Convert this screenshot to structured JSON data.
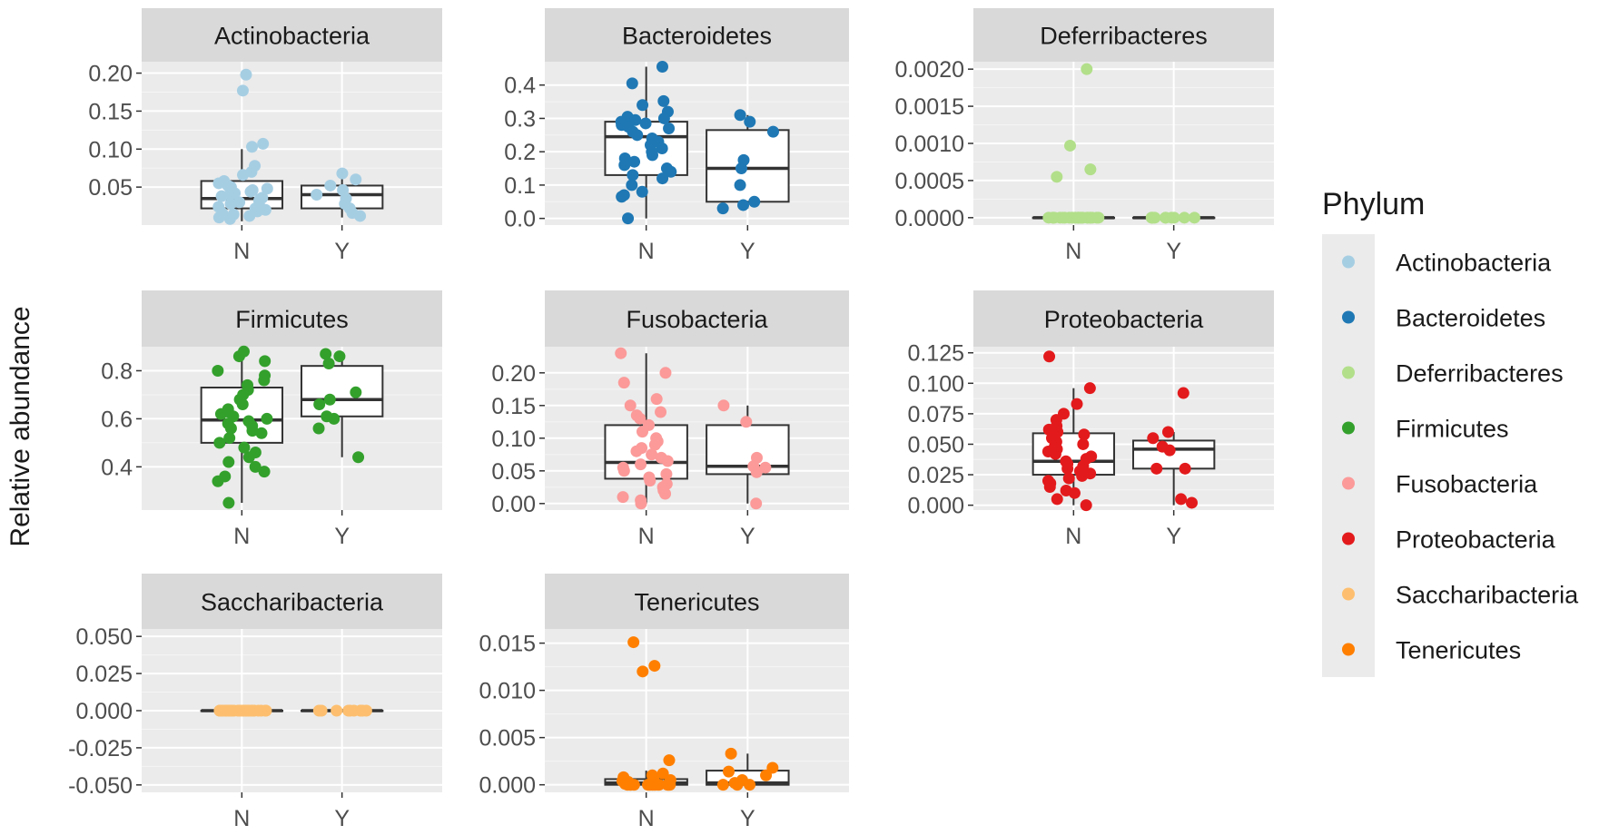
{
  "y_axis_label": "Relative abundance",
  "legend": {
    "title": "Phylum",
    "items": [
      {
        "label": "Actinobacteria",
        "color": "#a6cee3"
      },
      {
        "label": "Bacteroidetes",
        "color": "#1f78b4"
      },
      {
        "label": "Deferribacteres",
        "color": "#b2df8a"
      },
      {
        "label": "Firmicutes",
        "color": "#33a02c"
      },
      {
        "label": "Fusobacteria",
        "color": "#fb9a99"
      },
      {
        "label": "Proteobacteria",
        "color": "#e31a1c"
      },
      {
        "label": "Saccharibacteria",
        "color": "#fdbf6f"
      },
      {
        "label": "Tenericutes",
        "color": "#ff7f00"
      }
    ]
  },
  "chart_data": [
    {
      "type": "box",
      "title": "Actinobacteria",
      "color": "#a6cee3",
      "categories": [
        "N",
        "Y"
      ],
      "ylim": [
        0.0,
        0.215
      ],
      "yticks": [
        0.05,
        0.1,
        0.15,
        0.2
      ],
      "ytick_labels": [
        "0.05",
        "0.10",
        "0.15",
        "0.20"
      ],
      "boxes": [
        {
          "category": "N",
          "lower_whisker": 0.005,
          "q1": 0.022,
          "median": 0.035,
          "q3": 0.058,
          "upper_whisker": 0.1
        },
        {
          "category": "Y",
          "lower_whisker": 0.01,
          "q1": 0.022,
          "median": 0.04,
          "q3": 0.052,
          "upper_whisker": 0.065
        }
      ],
      "points": [
        {
          "category": "N",
          "values": [
            0.198,
            0.177,
            0.107,
            0.103,
            0.078,
            0.07,
            0.066,
            0.058,
            0.055,
            0.052,
            0.05,
            0.048,
            0.046,
            0.044,
            0.042,
            0.04,
            0.038,
            0.036,
            0.034,
            0.032,
            0.03,
            0.028,
            0.026,
            0.024,
            0.022,
            0.02,
            0.018,
            0.016,
            0.014,
            0.012,
            0.01,
            0.008
          ]
        },
        {
          "category": "Y",
          "values": [
            0.068,
            0.06,
            0.052,
            0.046,
            0.04,
            0.035,
            0.028,
            0.022,
            0.016,
            0.012
          ]
        }
      ]
    },
    {
      "type": "box",
      "title": "Bacteroidetes",
      "color": "#1f78b4",
      "categories": [
        "N",
        "Y"
      ],
      "ylim": [
        -0.02,
        0.47
      ],
      "yticks": [
        0.0,
        0.1,
        0.2,
        0.3,
        0.4
      ],
      "ytick_labels": [
        "0.0",
        "0.1",
        "0.2",
        "0.3",
        "0.4"
      ],
      "boxes": [
        {
          "category": "N",
          "lower_whisker": 0.0,
          "q1": 0.13,
          "median": 0.245,
          "q3": 0.29,
          "upper_whisker": 0.455
        },
        {
          "category": "Y",
          "lower_whisker": 0.03,
          "q1": 0.05,
          "median": 0.15,
          "q3": 0.265,
          "upper_whisker": 0.31
        }
      ],
      "points": [
        {
          "category": "N",
          "values": [
            0.455,
            0.405,
            0.352,
            0.34,
            0.32,
            0.305,
            0.3,
            0.295,
            0.29,
            0.285,
            0.28,
            0.275,
            0.27,
            0.26,
            0.25,
            0.24,
            0.23,
            0.22,
            0.21,
            0.2,
            0.19,
            0.18,
            0.17,
            0.16,
            0.15,
            0.14,
            0.13,
            0.12,
            0.1,
            0.08,
            0.07,
            0.065,
            0.0
          ]
        },
        {
          "category": "Y",
          "values": [
            0.31,
            0.29,
            0.26,
            0.175,
            0.15,
            0.1,
            0.05,
            0.04,
            0.03
          ]
        }
      ]
    },
    {
      "type": "box",
      "title": "Deferribacteres",
      "color": "#b2df8a",
      "categories": [
        "N",
        "Y"
      ],
      "ylim": [
        -0.0001,
        0.0021
      ],
      "yticks": [
        0.0,
        0.0005,
        0.001,
        0.0015,
        0.002
      ],
      "ytick_labels": [
        "0.0000",
        "0.0005",
        "0.0010",
        "0.0015",
        "0.0020"
      ],
      "boxes": [
        {
          "category": "N",
          "lower_whisker": 0.0,
          "q1": 0.0,
          "median": 0.0,
          "q3": 0.0,
          "upper_whisker": 0.0
        },
        {
          "category": "Y",
          "lower_whisker": 0.0,
          "q1": 0.0,
          "median": 0.0,
          "q3": 0.0,
          "upper_whisker": 0.0
        }
      ],
      "points": [
        {
          "category": "N",
          "values": [
            0.002,
            0.00097,
            0.00065,
            0.00055,
            0.0,
            0.0,
            0.0,
            0.0,
            0.0,
            0.0,
            0.0,
            0.0,
            0.0,
            0.0,
            0.0,
            0.0,
            0.0,
            0.0,
            0.0,
            0.0,
            0.0,
            0.0,
            0.0,
            0.0,
            0.0,
            0.0,
            0.0,
            0.0,
            0.0,
            0.0
          ]
        },
        {
          "category": "Y",
          "values": [
            0.0,
            0.0,
            0.0,
            0.0,
            0.0,
            0.0,
            0.0,
            0.0,
            0.0,
            0.0
          ]
        }
      ]
    },
    {
      "type": "box",
      "title": "Firmicutes",
      "color": "#33a02c",
      "categories": [
        "N",
        "Y"
      ],
      "ylim": [
        0.22,
        0.9
      ],
      "yticks": [
        0.4,
        0.6,
        0.8
      ],
      "ytick_labels": [
        "0.4",
        "0.6",
        "0.8"
      ],
      "boxes": [
        {
          "category": "N",
          "lower_whisker": 0.25,
          "q1": 0.5,
          "median": 0.595,
          "q3": 0.73,
          "upper_whisker": 0.88
        },
        {
          "category": "Y",
          "lower_whisker": 0.44,
          "q1": 0.61,
          "median": 0.68,
          "q3": 0.82,
          "upper_whisker": 0.87
        }
      ],
      "points": [
        {
          "category": "N",
          "values": [
            0.88,
            0.86,
            0.84,
            0.8,
            0.78,
            0.76,
            0.74,
            0.72,
            0.7,
            0.68,
            0.66,
            0.64,
            0.63,
            0.62,
            0.61,
            0.6,
            0.59,
            0.58,
            0.57,
            0.56,
            0.55,
            0.54,
            0.52,
            0.5,
            0.48,
            0.46,
            0.44,
            0.42,
            0.4,
            0.38,
            0.36,
            0.34,
            0.25
          ]
        },
        {
          "category": "Y",
          "values": [
            0.87,
            0.86,
            0.83,
            0.71,
            0.68,
            0.66,
            0.61,
            0.6,
            0.56,
            0.44
          ]
        }
      ]
    },
    {
      "type": "box",
      "title": "Fusobacteria",
      "color": "#fb9a99",
      "categories": [
        "N",
        "Y"
      ],
      "ylim": [
        -0.01,
        0.24
      ],
      "yticks": [
        0.0,
        0.05,
        0.1,
        0.15,
        0.2
      ],
      "ytick_labels": [
        "0.00",
        "0.05",
        "0.10",
        "0.15",
        "0.20"
      ],
      "boxes": [
        {
          "category": "N",
          "lower_whisker": 0.0,
          "q1": 0.038,
          "median": 0.063,
          "q3": 0.12,
          "upper_whisker": 0.23
        },
        {
          "category": "Y",
          "lower_whisker": 0.0,
          "q1": 0.045,
          "median": 0.057,
          "q3": 0.12,
          "upper_whisker": 0.15
        }
      ],
      "points": [
        {
          "category": "N",
          "values": [
            0.23,
            0.2,
            0.185,
            0.16,
            0.15,
            0.14,
            0.135,
            0.13,
            0.12,
            0.11,
            0.1,
            0.095,
            0.09,
            0.085,
            0.08,
            0.075,
            0.07,
            0.065,
            0.06,
            0.055,
            0.05,
            0.045,
            0.04,
            0.035,
            0.03,
            0.025,
            0.02,
            0.015,
            0.01,
            0.005,
            0.0
          ]
        },
        {
          "category": "Y",
          "values": [
            0.15,
            0.125,
            0.07,
            0.057,
            0.055,
            0.048,
            0.0
          ]
        }
      ]
    },
    {
      "type": "box",
      "title": "Proteobacteria",
      "color": "#e31a1c",
      "categories": [
        "N",
        "Y"
      ],
      "ylim": [
        -0.004,
        0.13
      ],
      "yticks": [
        0.0,
        0.025,
        0.05,
        0.075,
        0.1,
        0.125
      ],
      "ytick_labels": [
        "0.000",
        "0.025",
        "0.050",
        "0.075",
        "0.100",
        "0.125"
      ],
      "boxes": [
        {
          "category": "N",
          "lower_whisker": 0.0,
          "q1": 0.025,
          "median": 0.036,
          "q3": 0.059,
          "upper_whisker": 0.096
        },
        {
          "category": "Y",
          "lower_whisker": 0.0,
          "q1": 0.03,
          "median": 0.046,
          "q3": 0.053,
          "upper_whisker": 0.06
        }
      ],
      "points": [
        {
          "category": "N",
          "values": [
            0.122,
            0.096,
            0.083,
            0.075,
            0.07,
            0.065,
            0.062,
            0.06,
            0.058,
            0.055,
            0.052,
            0.05,
            0.048,
            0.046,
            0.044,
            0.042,
            0.04,
            0.038,
            0.036,
            0.034,
            0.032,
            0.03,
            0.028,
            0.026,
            0.024,
            0.022,
            0.02,
            0.018,
            0.015,
            0.012,
            0.01,
            0.005,
            0.0
          ]
        },
        {
          "category": "Y",
          "values": [
            0.092,
            0.06,
            0.055,
            0.048,
            0.045,
            0.03,
            0.03,
            0.005,
            0.002
          ]
        }
      ]
    },
    {
      "type": "box",
      "title": "Saccharibacteria",
      "color": "#fdbf6f",
      "categories": [
        "N",
        "Y"
      ],
      "ylim": [
        -0.055,
        0.055
      ],
      "yticks": [
        -0.05,
        -0.025,
        0.0,
        0.025,
        0.05
      ],
      "ytick_labels": [
        "-0.050",
        "-0.025",
        "0.000",
        "0.025",
        "0.050"
      ],
      "boxes": [
        {
          "category": "N",
          "lower_whisker": 0.0,
          "q1": 0.0,
          "median": 0.0,
          "q3": 0.0,
          "upper_whisker": 0.0
        },
        {
          "category": "Y",
          "lower_whisker": 0.0,
          "q1": 0.0,
          "median": 0.0,
          "q3": 0.0,
          "upper_whisker": 0.0
        }
      ],
      "points": [
        {
          "category": "N",
          "values": [
            0.0,
            0.0,
            0.0,
            0.0,
            0.0,
            0.0,
            0.0,
            0.0,
            0.0,
            0.0,
            0.0,
            0.0,
            0.0,
            0.0,
            0.0,
            0.0,
            0.0,
            0.0,
            0.0,
            0.0,
            0.0,
            0.0,
            0.0,
            0.0,
            0.0,
            0.0,
            0.0,
            0.0,
            0.0,
            0.0
          ]
        },
        {
          "category": "Y",
          "values": [
            0.0,
            0.0,
            0.0,
            0.0,
            0.0,
            0.0,
            0.0,
            0.0,
            0.0,
            0.0
          ]
        }
      ]
    },
    {
      "type": "box",
      "title": "Tenericutes",
      "color": "#ff7f00",
      "categories": [
        "N",
        "Y"
      ],
      "ylim": [
        -0.0008,
        0.0165
      ],
      "yticks": [
        0.0,
        0.005,
        0.01,
        0.015
      ],
      "ytick_labels": [
        "0.000",
        "0.005",
        "0.010",
        "0.015"
      ],
      "boxes": [
        {
          "category": "N",
          "lower_whisker": 0.0,
          "q1": 0.0,
          "median": 0.0002,
          "q3": 0.0006,
          "upper_whisker": 0.0015
        },
        {
          "category": "Y",
          "lower_whisker": 0.0,
          "q1": 0.0,
          "median": 0.0002,
          "q3": 0.0015,
          "upper_whisker": 0.0033
        }
      ],
      "points": [
        {
          "category": "N",
          "values": [
            0.0151,
            0.0126,
            0.012,
            0.0026,
            0.0012,
            0.001,
            0.0008,
            0.0006,
            0.0005,
            0.0004,
            0.0003,
            0.0002,
            0.0001,
            0.0,
            0.0,
            0.0,
            0.0,
            0.0,
            0.0,
            0.0,
            0.0,
            0.0,
            0.0,
            0.0,
            0.0,
            0.0,
            0.0,
            0.0,
            0.0,
            0.0
          ]
        },
        {
          "category": "Y",
          "values": [
            0.0033,
            0.0018,
            0.0014,
            0.001,
            0.0005,
            0.0002,
            0.0,
            0.0,
            0.0
          ]
        }
      ]
    }
  ]
}
